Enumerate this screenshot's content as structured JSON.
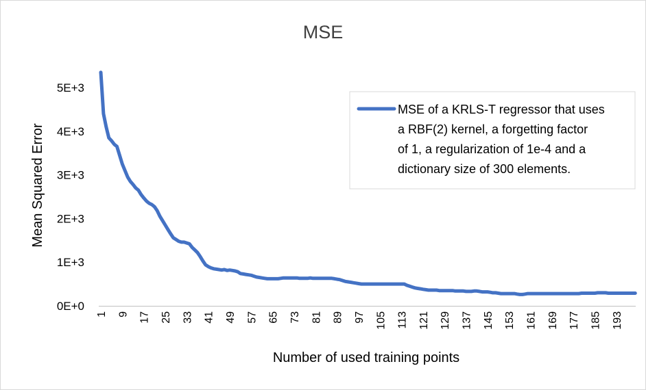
{
  "chart_data": {
    "type": "line",
    "title": "MSE",
    "xlabel": "Number of used training points",
    "ylabel": "Mean Squared Error",
    "x_range": [
      1,
      200
    ],
    "ylim": [
      0,
      5500
    ],
    "y_ticks": [
      {
        "value": 0,
        "label": "0E+0"
      },
      {
        "value": 1000,
        "label": "1E+3"
      },
      {
        "value": 2000,
        "label": "2E+3"
      },
      {
        "value": 3000,
        "label": "3E+3"
      },
      {
        "value": 4000,
        "label": "4E+3"
      },
      {
        "value": 5000,
        "label": "5E+3"
      }
    ],
    "x_tick_labels": [
      "1",
      "9",
      "17",
      "25",
      "33",
      "41",
      "49",
      "57",
      "65",
      "73",
      "81",
      "89",
      "97",
      "105",
      "113",
      "121",
      "129",
      "137",
      "145",
      "153",
      "161",
      "169",
      "177",
      "185",
      "193"
    ],
    "grid": false,
    "legend_position": "top-right",
    "colors": {
      "series": "#4472C4",
      "axis": "#bfbfbf",
      "frame": "#d9d9d9"
    },
    "series": [
      {
        "name": "MSE of a KRLS-T regressor that uses a RBF(2) kernel, a forgetting factor of 1, a regularization of 1e-4 and a dictionary size of 300 elements.",
        "name_lines": [
          "MSE of a KRLS-T regressor that uses",
          "a RBF(2) kernel, a forgetting factor",
          "of 1, a regularization of 1e-4 and a",
          "dictionary size of 300 elements."
        ],
        "points": [
          [
            1,
            5350
          ],
          [
            2,
            4400
          ],
          [
            3,
            4100
          ],
          [
            4,
            3850
          ],
          [
            5,
            3780
          ],
          [
            6,
            3700
          ],
          [
            7,
            3650
          ],
          [
            8,
            3450
          ],
          [
            9,
            3250
          ],
          [
            10,
            3100
          ],
          [
            11,
            2950
          ],
          [
            12,
            2850
          ],
          [
            13,
            2780
          ],
          [
            14,
            2700
          ],
          [
            15,
            2650
          ],
          [
            16,
            2550
          ],
          [
            17,
            2470
          ],
          [
            18,
            2400
          ],
          [
            19,
            2350
          ],
          [
            20,
            2320
          ],
          [
            21,
            2270
          ],
          [
            22,
            2180
          ],
          [
            23,
            2050
          ],
          [
            24,
            1950
          ],
          [
            25,
            1850
          ],
          [
            26,
            1750
          ],
          [
            27,
            1650
          ],
          [
            28,
            1560
          ],
          [
            29,
            1520
          ],
          [
            30,
            1480
          ],
          [
            31,
            1460
          ],
          [
            32,
            1460
          ],
          [
            33,
            1440
          ],
          [
            34,
            1420
          ],
          [
            35,
            1340
          ],
          [
            36,
            1280
          ],
          [
            37,
            1220
          ],
          [
            38,
            1130
          ],
          [
            39,
            1030
          ],
          [
            40,
            940
          ],
          [
            41,
            900
          ],
          [
            42,
            870
          ],
          [
            43,
            850
          ],
          [
            44,
            840
          ],
          [
            45,
            830
          ],
          [
            46,
            820
          ],
          [
            47,
            830
          ],
          [
            48,
            810
          ],
          [
            49,
            820
          ],
          [
            50,
            810
          ],
          [
            51,
            800
          ],
          [
            52,
            780
          ],
          [
            53,
            740
          ],
          [
            54,
            730
          ],
          [
            55,
            720
          ],
          [
            56,
            710
          ],
          [
            57,
            700
          ],
          [
            58,
            680
          ],
          [
            59,
            660
          ],
          [
            60,
            650
          ],
          [
            61,
            640
          ],
          [
            62,
            630
          ],
          [
            63,
            620
          ],
          [
            64,
            620
          ],
          [
            65,
            620
          ],
          [
            66,
            620
          ],
          [
            67,
            620
          ],
          [
            68,
            630
          ],
          [
            69,
            640
          ],
          [
            70,
            640
          ],
          [
            71,
            640
          ],
          [
            72,
            640
          ],
          [
            73,
            640
          ],
          [
            74,
            640
          ],
          [
            75,
            630
          ],
          [
            76,
            630
          ],
          [
            77,
            630
          ],
          [
            78,
            630
          ],
          [
            79,
            640
          ],
          [
            80,
            630
          ],
          [
            81,
            630
          ],
          [
            82,
            630
          ],
          [
            83,
            630
          ],
          [
            84,
            630
          ],
          [
            85,
            630
          ],
          [
            86,
            630
          ],
          [
            87,
            630
          ],
          [
            88,
            620
          ],
          [
            89,
            610
          ],
          [
            90,
            600
          ],
          [
            91,
            580
          ],
          [
            92,
            560
          ],
          [
            93,
            550
          ],
          [
            94,
            540
          ],
          [
            95,
            530
          ],
          [
            96,
            520
          ],
          [
            97,
            510
          ],
          [
            98,
            500
          ],
          [
            99,
            500
          ],
          [
            100,
            500
          ],
          [
            101,
            500
          ],
          [
            102,
            500
          ],
          [
            103,
            500
          ],
          [
            104,
            500
          ],
          [
            105,
            500
          ],
          [
            106,
            500
          ],
          [
            107,
            500
          ],
          [
            108,
            500
          ],
          [
            109,
            500
          ],
          [
            110,
            500
          ],
          [
            111,
            500
          ],
          [
            112,
            500
          ],
          [
            113,
            500
          ],
          [
            114,
            500
          ],
          [
            115,
            470
          ],
          [
            116,
            450
          ],
          [
            117,
            430
          ],
          [
            118,
            410
          ],
          [
            119,
            400
          ],
          [
            120,
            390
          ],
          [
            121,
            380
          ],
          [
            122,
            370
          ],
          [
            123,
            360
          ],
          [
            124,
            360
          ],
          [
            125,
            360
          ],
          [
            126,
            360
          ],
          [
            127,
            350
          ],
          [
            128,
            350
          ],
          [
            129,
            350
          ],
          [
            130,
            350
          ],
          [
            131,
            350
          ],
          [
            132,
            350
          ],
          [
            133,
            340
          ],
          [
            134,
            340
          ],
          [
            135,
            340
          ],
          [
            136,
            340
          ],
          [
            137,
            330
          ],
          [
            138,
            330
          ],
          [
            139,
            330
          ],
          [
            140,
            340
          ],
          [
            141,
            340
          ],
          [
            142,
            330
          ],
          [
            143,
            320
          ],
          [
            144,
            320
          ],
          [
            145,
            320
          ],
          [
            146,
            310
          ],
          [
            147,
            300
          ],
          [
            148,
            300
          ],
          [
            149,
            290
          ],
          [
            150,
            280
          ],
          [
            151,
            280
          ],
          [
            152,
            280
          ],
          [
            153,
            280
          ],
          [
            154,
            280
          ],
          [
            155,
            280
          ],
          [
            156,
            270
          ],
          [
            157,
            260
          ],
          [
            158,
            260
          ],
          [
            159,
            270
          ],
          [
            160,
            280
          ],
          [
            161,
            280
          ],
          [
            162,
            280
          ],
          [
            163,
            280
          ],
          [
            164,
            280
          ],
          [
            165,
            280
          ],
          [
            166,
            280
          ],
          [
            167,
            280
          ],
          [
            168,
            280
          ],
          [
            169,
            280
          ],
          [
            170,
            280
          ],
          [
            171,
            280
          ],
          [
            172,
            280
          ],
          [
            173,
            280
          ],
          [
            174,
            280
          ],
          [
            175,
            280
          ],
          [
            176,
            280
          ],
          [
            177,
            280
          ],
          [
            178,
            280
          ],
          [
            179,
            280
          ],
          [
            180,
            290
          ],
          [
            181,
            290
          ],
          [
            182,
            290
          ],
          [
            183,
            290
          ],
          [
            184,
            290
          ],
          [
            185,
            290
          ],
          [
            186,
            300
          ],
          [
            187,
            300
          ],
          [
            188,
            300
          ],
          [
            189,
            300
          ],
          [
            190,
            290
          ],
          [
            191,
            290
          ],
          [
            192,
            290
          ],
          [
            193,
            290
          ],
          [
            194,
            290
          ],
          [
            195,
            290
          ],
          [
            196,
            290
          ],
          [
            197,
            290
          ],
          [
            198,
            290
          ],
          [
            199,
            290
          ],
          [
            200,
            290
          ]
        ]
      }
    ]
  }
}
